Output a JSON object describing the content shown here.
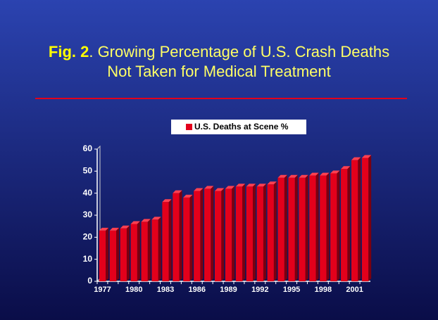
{
  "chart_data": {
    "type": "bar",
    "title": [
      "Fig. 2",
      ". Growing Percentage of U.S. Crash Deaths",
      "Not Taken for Medical Treatment"
    ],
    "categories": [
      "1977",
      null,
      null,
      "1980",
      null,
      null,
      "1983",
      null,
      null,
      "1986",
      null,
      null,
      "1989",
      null,
      null,
      "1992",
      null,
      null,
      "1995",
      null,
      null,
      "1998",
      null,
      null,
      "2001",
      null
    ],
    "series": [
      {
        "name": "U.S. Deaths at Scene %",
        "color": "#e3001b",
        "values": [
          23,
          23,
          24,
          26,
          27,
          28,
          36,
          40,
          38,
          41,
          42,
          41,
          42,
          43,
          43,
          43,
          44,
          47,
          47,
          47,
          48,
          48,
          49,
          51,
          55,
          56
        ]
      }
    ],
    "ylim": [
      0,
      60
    ],
    "yticks": [
      0,
      10,
      20,
      30,
      40,
      50,
      60
    ],
    "grid": false,
    "legend": "top"
  }
}
